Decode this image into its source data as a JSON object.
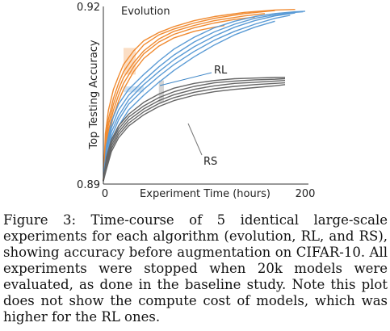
{
  "chart_data": {
    "type": "line",
    "title": "",
    "xlabel": "Experiment Time (hours)",
    "ylabel": "Top Testing Accuracy",
    "xlim": [
      0,
      200
    ],
    "ylim": [
      0.89,
      0.92
    ],
    "x_ticks": [
      "0",
      "200"
    ],
    "y_ticks": [
      "0.89",
      "0.92"
    ],
    "grid": false,
    "legend": "none",
    "annotations": [
      {
        "text": "Evolution",
        "color": "#e8822a"
      },
      {
        "text": "RL",
        "color": "#3d85c6"
      },
      {
        "text": "RS",
        "color": "#555555"
      }
    ],
    "groups": [
      {
        "label": "Evolution",
        "color": "#f08a30",
        "runs": [
          {
            "x": [
              0,
              2,
              5,
              10,
              15,
              20,
              30,
              40,
              55,
              70,
              90,
              110,
              140,
              170,
              190
            ],
            "y": [
              0.8905,
              0.8985,
              0.9025,
              0.906,
              0.9082,
              0.9102,
              0.9125,
              0.9142,
              0.9156,
              0.9166,
              0.9176,
              0.9183,
              0.919,
              0.9194,
              0.9195
            ]
          },
          {
            "x": [
              0,
              2,
              5,
              10,
              15,
              20,
              30,
              40,
              55,
              70,
              90,
              110,
              140,
              170
            ],
            "y": [
              0.8905,
              0.8975,
              0.901,
              0.9045,
              0.907,
              0.909,
              0.9115,
              0.9135,
              0.9152,
              0.9162,
              0.9172,
              0.918,
              0.9188,
              0.9193
            ]
          },
          {
            "x": [
              0,
              2,
              5,
              10,
              15,
              20,
              30,
              40,
              55,
              70,
              90,
              110,
              140,
              160
            ],
            "y": [
              0.8905,
              0.8965,
              0.9,
              0.9035,
              0.906,
              0.908,
              0.9105,
              0.9125,
              0.9145,
              0.9158,
              0.9168,
              0.9176,
              0.9184,
              0.9188
            ]
          },
          {
            "x": [
              0,
              2,
              5,
              10,
              15,
              20,
              30,
              40,
              55,
              70,
              90,
              110,
              130,
              150
            ],
            "y": [
              0.8905,
              0.8955,
              0.899,
              0.9025,
              0.905,
              0.907,
              0.9098,
              0.912,
              0.914,
              0.9153,
              0.9164,
              0.9172,
              0.9178,
              0.9182
            ]
          },
          {
            "x": [
              0,
              2,
              5,
              10,
              15,
              20,
              30,
              40,
              55,
              70,
              90,
              110,
              120
            ],
            "y": [
              0.8905,
              0.895,
              0.898,
              0.9015,
              0.904,
              0.906,
              0.909,
              0.9112,
              0.9133,
              0.9147,
              0.9158,
              0.9165,
              0.9168
            ]
          }
        ]
      },
      {
        "label": "RL",
        "color": "#5b9bd5",
        "runs": [
          {
            "x": [
              0,
              3,
              8,
              15,
              25,
              40,
              55,
              70,
              90,
              110,
              130,
              150,
              170,
              190,
              200
            ],
            "y": [
              0.8905,
              0.8965,
              0.9005,
              0.9035,
              0.906,
              0.9085,
              0.9108,
              0.9128,
              0.9148,
              0.9164,
              0.9175,
              0.9183,
              0.9188,
              0.9191,
              0.9192
            ]
          },
          {
            "x": [
              0,
              3,
              8,
              15,
              25,
              40,
              55,
              70,
              90,
              110,
              130,
              150,
              170,
              190,
              198
            ],
            "y": [
              0.8905,
              0.896,
              0.8995,
              0.9025,
              0.905,
              0.9075,
              0.9098,
              0.9118,
              0.914,
              0.9157,
              0.917,
              0.918,
              0.9186,
              0.919,
              0.9191
            ]
          },
          {
            "x": [
              0,
              3,
              8,
              15,
              25,
              40,
              55,
              70,
              90,
              110,
              130,
              150,
              170,
              190
            ],
            "y": [
              0.8905,
              0.8955,
              0.8988,
              0.9015,
              0.9042,
              0.9068,
              0.909,
              0.911,
              0.9132,
              0.915,
              0.9165,
              0.9176,
              0.9184,
              0.9189
            ]
          },
          {
            "x": [
              0,
              3,
              8,
              15,
              25,
              40,
              55,
              70,
              90,
              110,
              130,
              150,
              170,
              185
            ],
            "y": [
              0.8905,
              0.8948,
              0.898,
              0.9008,
              0.9035,
              0.906,
              0.9082,
              0.9102,
              0.9124,
              0.9143,
              0.9158,
              0.917,
              0.918,
              0.9185
            ]
          },
          {
            "x": [
              0,
              3,
              8,
              15,
              25,
              40,
              55,
              70,
              90,
              110,
              130,
              150,
              170
            ],
            "y": [
              0.8905,
              0.894,
              0.897,
              0.8998,
              0.9025,
              0.905,
              0.9072,
              0.9092,
              0.9115,
              0.9135,
              0.9152,
              0.9165,
              0.9175
            ]
          }
        ]
      },
      {
        "label": "RS",
        "color": "#666666",
        "runs": [
          {
            "x": [
              0,
              3,
              8,
              15,
              25,
              40,
              55,
              70,
              90,
              110,
              130,
              150,
              170,
              180
            ],
            "y": [
              0.8905,
              0.8945,
              0.8975,
              0.8998,
              0.9018,
              0.9038,
              0.9052,
              0.9062,
              0.907,
              0.9075,
              0.9078,
              0.9079,
              0.908,
              0.908
            ]
          },
          {
            "x": [
              0,
              3,
              8,
              15,
              25,
              40,
              55,
              70,
              90,
              110,
              130,
              150,
              170,
              180
            ],
            "y": [
              0.8905,
              0.894,
              0.897,
              0.8993,
              0.9013,
              0.9032,
              0.9046,
              0.9056,
              0.9065,
              0.9071,
              0.9074,
              0.9076,
              0.9077,
              0.9078
            ]
          },
          {
            "x": [
              0,
              3,
              8,
              15,
              25,
              40,
              55,
              70,
              90,
              110,
              130,
              150,
              170,
              180
            ],
            "y": [
              0.8905,
              0.8935,
              0.8965,
              0.8988,
              0.9008,
              0.9027,
              0.9041,
              0.9051,
              0.906,
              0.9066,
              0.907,
              0.9072,
              0.9074,
              0.9075
            ]
          },
          {
            "x": [
              0,
              3,
              8,
              15,
              25,
              40,
              55,
              70,
              90,
              110,
              130,
              150,
              170,
              180
            ],
            "y": [
              0.8905,
              0.893,
              0.896,
              0.8983,
              0.9003,
              0.9022,
              0.9036,
              0.9046,
              0.9055,
              0.9061,
              0.9065,
              0.9068,
              0.907,
              0.9071
            ]
          },
          {
            "x": [
              0,
              3,
              8,
              15,
              25,
              40,
              55,
              70,
              90,
              110,
              130,
              150,
              170,
              180
            ],
            "y": [
              0.8905,
              0.8925,
              0.8955,
              0.8978,
              0.8998,
              0.9017,
              0.9031,
              0.9041,
              0.905,
              0.9056,
              0.906,
              0.9063,
              0.9066,
              0.9068
            ]
          }
        ]
      }
    ],
    "bands": [
      {
        "group": "Evolution",
        "x": [
          20,
          32
        ],
        "y": [
          0.9085,
          0.913
        ]
      },
      {
        "group": "RL",
        "x": [
          20,
          40
        ],
        "y": [
          0.9055,
          0.9065
        ]
      },
      {
        "group": "RS",
        "x": [
          55,
          60
        ],
        "y": [
          0.9038,
          0.9075
        ]
      }
    ]
  },
  "caption": "Figure 3: Time-course of 5 identical large-scale experiments for each algorithm (evolution, RL, and RS), showing accuracy before augmentation on CIFAR-10. All experiments were stopped when 20k models were evaluated, as done in the baseline study. Note this plot does not show the compute cost of models, which was higher for the RL ones."
}
